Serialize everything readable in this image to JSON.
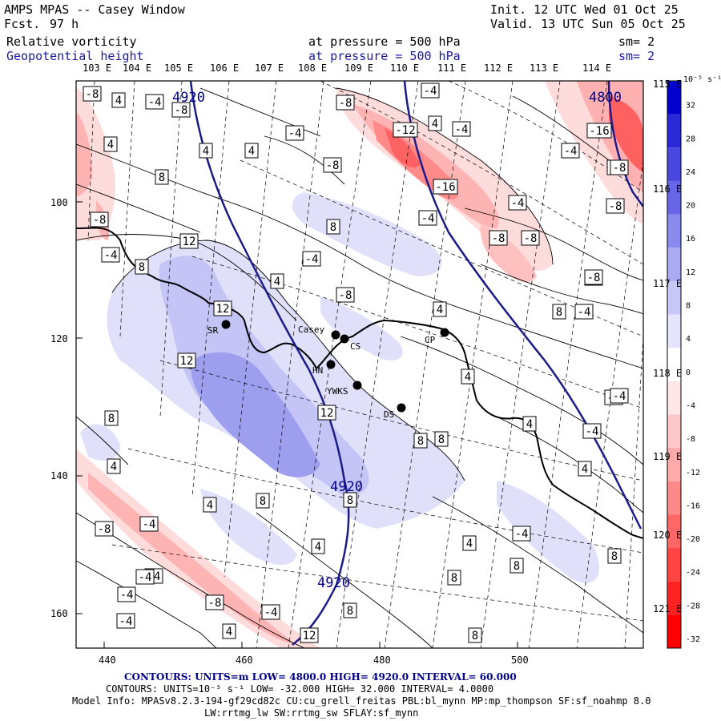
{
  "header": {
    "title": "AMPS MPAS -- Casey Window",
    "fcst_label": "Fcst.",
    "fcst_value": "97 h",
    "init": "Init. 12 UTC Wed 01 Oct 25",
    "valid": "Valid. 13 UTC Sun 05 Oct 25",
    "field1": "Relative vorticity",
    "field2": "Geopotential height",
    "pressure1": "at pressure =  500 hPa",
    "pressure2": "at pressure =  500 hPa",
    "sm1": "sm= 2",
    "sm2": "sm= 2"
  },
  "lon_labels_top": [
    "103 E",
    "104 E",
    "105 E",
    "106 E",
    "107 E",
    "108 E",
    "109 E",
    "110 E",
    "111 E",
    "112 E",
    "113 E",
    "114 E"
  ],
  "lon_labels_right": [
    "115 E",
    "116 E",
    "117 E",
    "118 E",
    "119 E",
    "120 E",
    "121 E"
  ],
  "x_ticks": [
    "440",
    "460",
    "480",
    "500"
  ],
  "y_ticks": [
    "100",
    "120",
    "140",
    "160"
  ],
  "stations": [
    {
      "name": "Casey",
      "code": "casey"
    },
    {
      "name": "CS",
      "code": "cs"
    },
    {
      "name": "CP",
      "code": "cp"
    },
    {
      "name": "SR",
      "code": "sr"
    },
    {
      "name": "HN",
      "code": "hn"
    },
    {
      "name": "YWKS",
      "code": "ywks"
    },
    {
      "name": "DS",
      "code": "ds"
    }
  ],
  "height_labels": [
    "4920",
    "4800",
    "4920",
    "4920"
  ],
  "colorbar": {
    "unit": "10⁻⁵ s⁻¹",
    "ticks": [
      "32",
      "28",
      "24",
      "20",
      "16",
      "12",
      "8",
      "4",
      "0",
      "-4",
      "-8",
      "-12",
      "-16",
      "-20",
      "-24",
      "-28",
      "-32"
    ],
    "colors": [
      "#0000cc",
      "#2a2ad8",
      "#4848e0",
      "#6666e6",
      "#8a8aee",
      "#aaaaf2",
      "#c8c8f8",
      "#e4e4fc",
      "#ffffff",
      "#ffe6e6",
      "#ffc8c8",
      "#ffaaaa",
      "#ff8888",
      "#ff6666",
      "#ff4444",
      "#ff2222",
      "#ff0000"
    ]
  },
  "vort_labels": [
    "-8",
    "4",
    "-4",
    "-8",
    "4",
    "-4",
    "-8",
    "-12",
    "4",
    "-4",
    "-4",
    "-8",
    "4",
    "8",
    "-8",
    "-4",
    "8",
    "-16",
    "-4",
    "-8",
    "-4",
    "-4",
    "-8",
    "-8",
    "-4",
    "8",
    "12",
    "12",
    "-4",
    "4",
    "4",
    "-8",
    "-4",
    "-4",
    "8",
    "-8",
    "4",
    "4",
    "12",
    "8",
    "8",
    "8",
    "4",
    "4",
    "-4",
    "-4",
    "4",
    "12",
    "8",
    "-4",
    "-4",
    "4",
    "-8",
    "-4",
    "-8",
    "4",
    "8",
    "-4",
    "8",
    "4",
    "-4",
    "-8",
    "4",
    "8",
    "8",
    "-4",
    "4",
    "8",
    "12",
    "8",
    "-4",
    "-16",
    "-8"
  ],
  "footer": {
    "contours1": "CONTOURS:  UNITS=m  LOW=  4800.0        HIGH=  4920.0        INTERVAL=   60.000",
    "contours2": "CONTOURS:  UNITS=10⁻⁵ s⁻¹  LOW=  -32.000        HIGH=  32.000        INTERVAL=   4.0000",
    "model_info": "Model Info: MPASv8.2.3-194-gf29cd82c CU:cu_grell_freitas PBL:bl_mynn MP:mp_thompson SF:sf_noahmp 8.0",
    "model_info2": "LW:rrtmg_lw SW:rrtmg_sw SFLAY:sf_mynn"
  }
}
